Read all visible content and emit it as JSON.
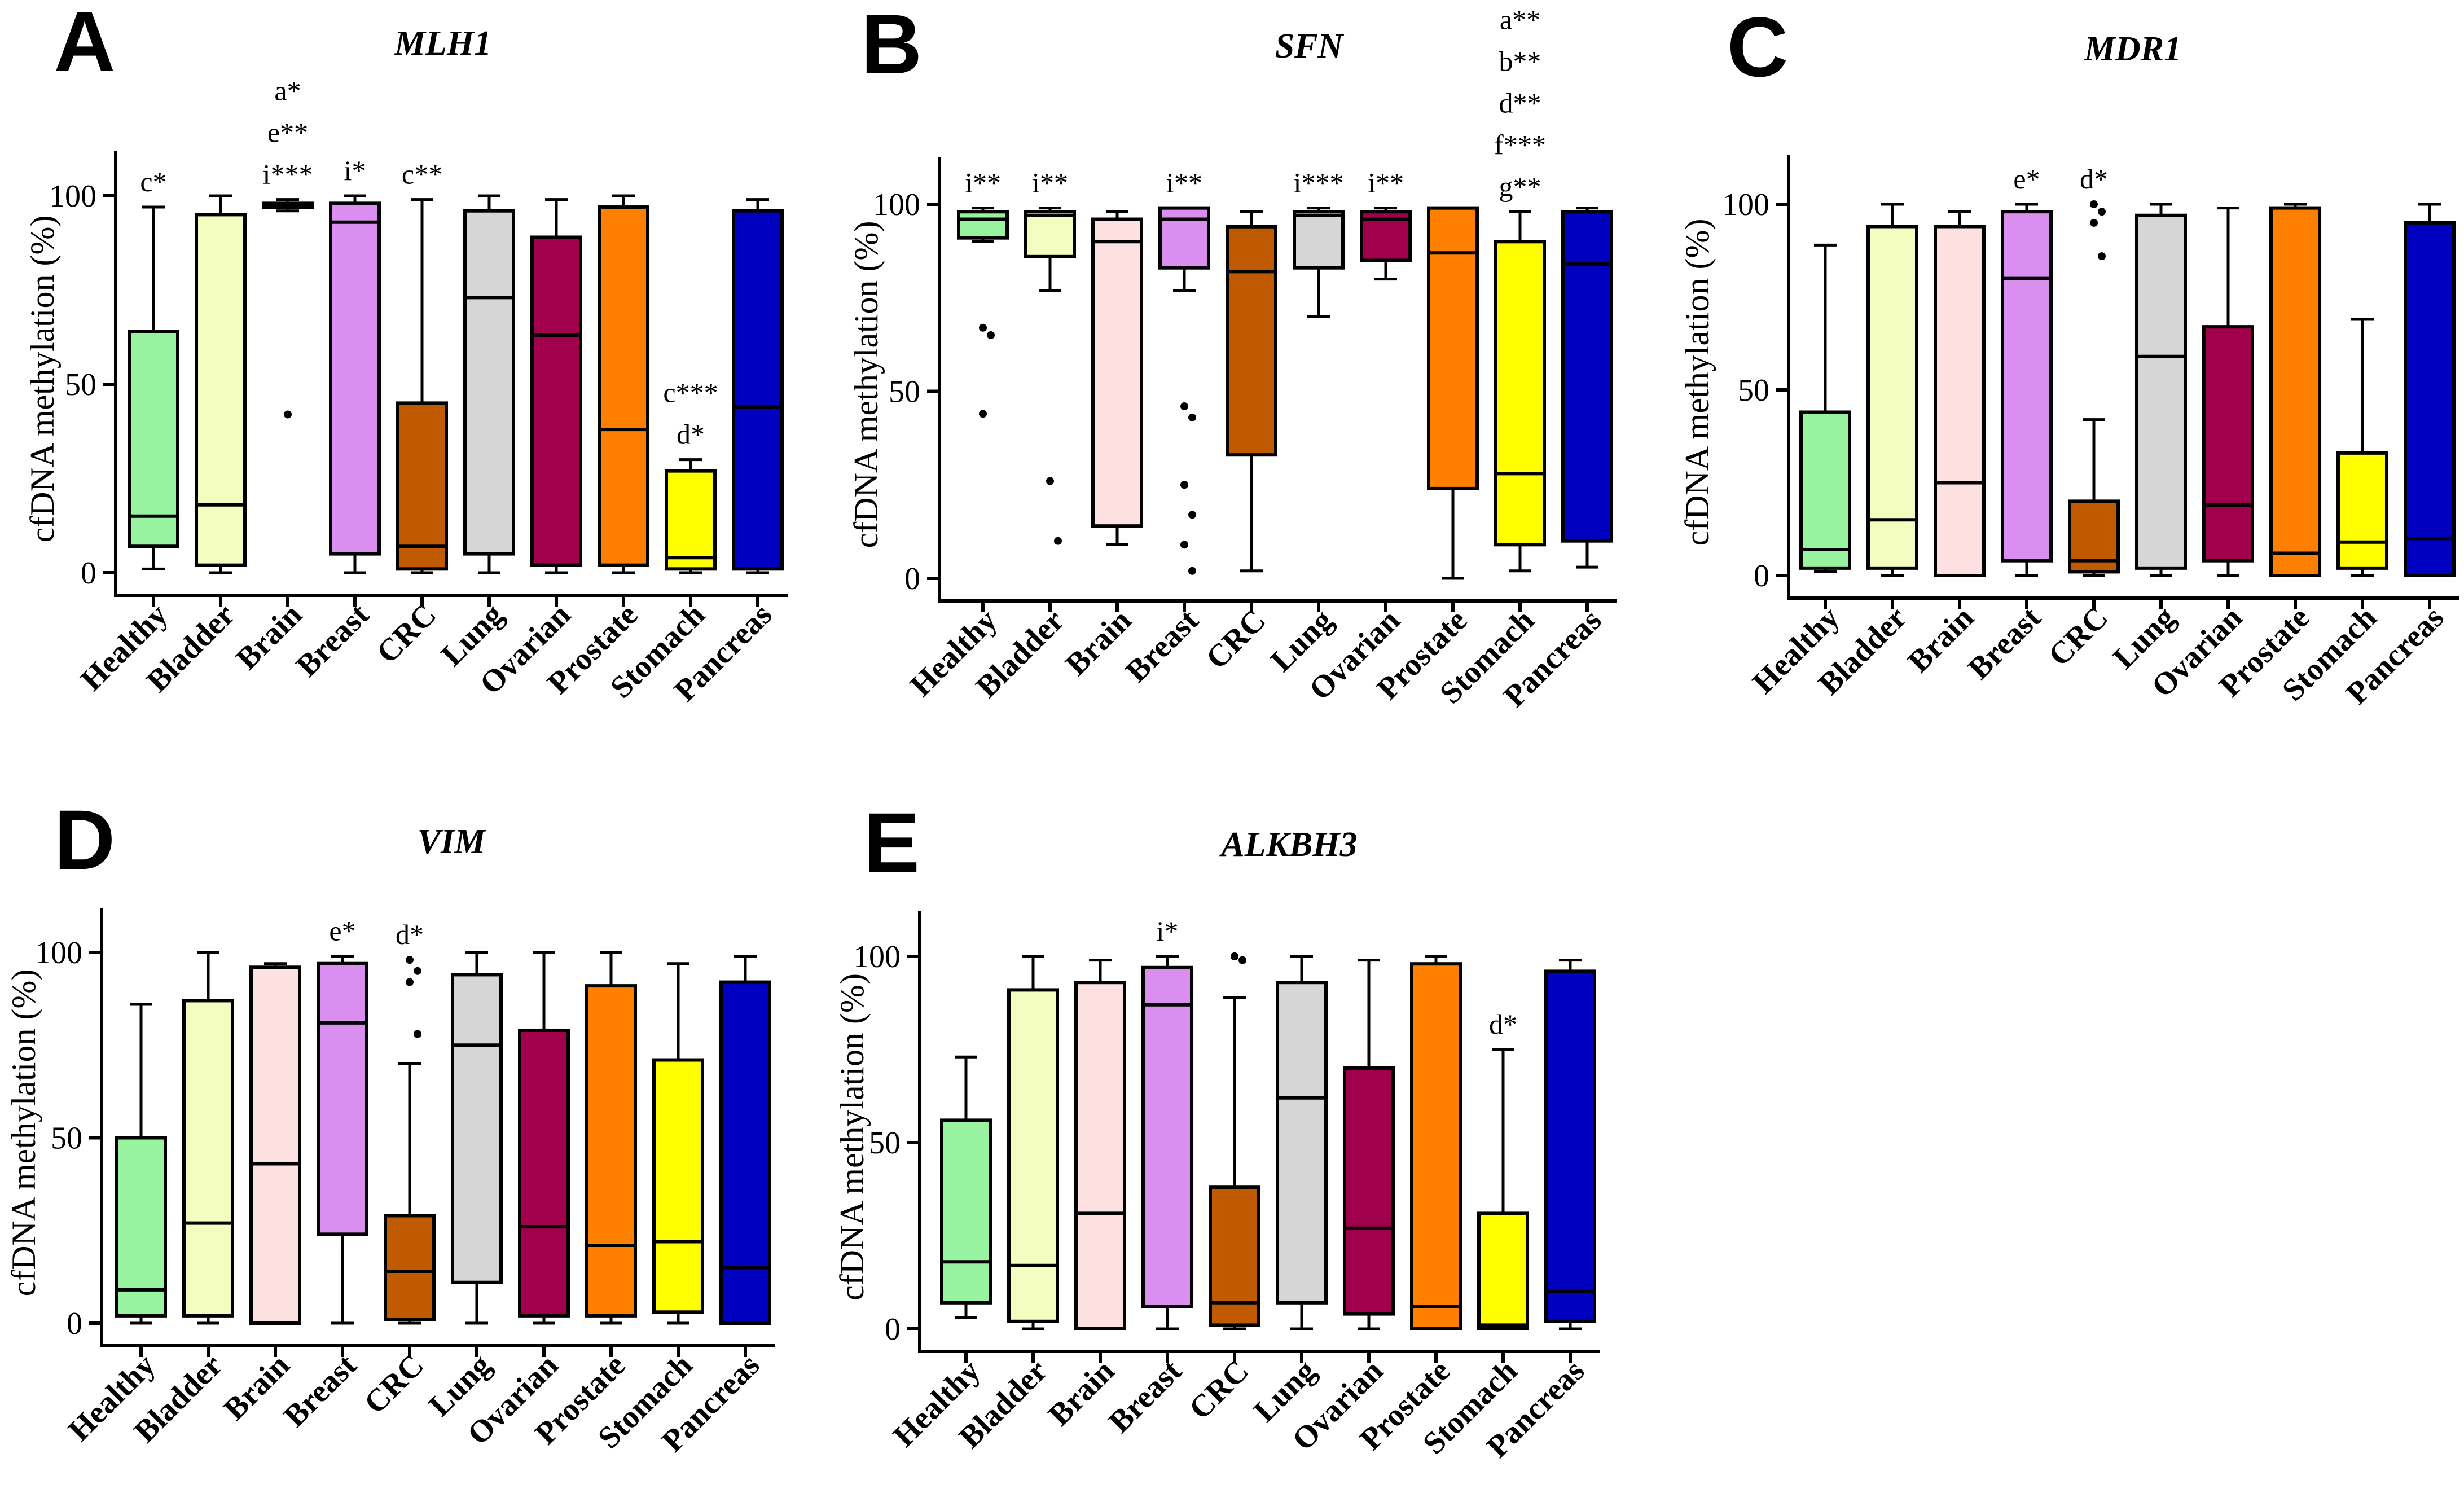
{
  "figure": {
    "categories": [
      "Healthy",
      "Bladder",
      "Brain",
      "Breast",
      "CRC",
      "Lung",
      "Ovarian",
      "Prostate",
      "Stomach",
      "Pancreas"
    ],
    "colors": {
      "Healthy": "#98f3a0",
      "Bladder": "#f4fdc0",
      "Brain": "#fde0e0",
      "Breast": "#da8ff0",
      "CRC": "#c05a00",
      "Lung": "#d6d6d6",
      "Ovarian": "#a0004c",
      "Prostate": "#ff8000",
      "Stomach": "#ffff00",
      "Pancreas": "#0000c0"
    }
  },
  "chart_data": [
    {
      "panel": "A",
      "title": "MLH1",
      "type": "boxplot",
      "ylabel": "cfDNA methylation (%)",
      "ylim": [
        0,
        100
      ],
      "yticks": [
        0,
        50,
        100
      ],
      "boxes": [
        {
          "category": "Healthy",
          "min": 1,
          "q1": 7,
          "median": 15,
          "q3": 64,
          "max": 97,
          "outliers": []
        },
        {
          "category": "Bladder",
          "min": 0,
          "q1": 2,
          "median": 18,
          "q3": 95,
          "max": 100,
          "outliers": []
        },
        {
          "category": "Brain",
          "min": 96,
          "q1": 97,
          "median": 97.5,
          "q3": 98,
          "max": 99,
          "outliers": [
            42
          ]
        },
        {
          "category": "Breast",
          "min": 0,
          "q1": 5,
          "median": 93,
          "q3": 98,
          "max": 100,
          "outliers": []
        },
        {
          "category": "CRC",
          "min": 0,
          "q1": 1,
          "median": 7,
          "q3": 45,
          "max": 99,
          "outliers": []
        },
        {
          "category": "Lung",
          "min": 0,
          "q1": 5,
          "median": 73,
          "q3": 96,
          "max": 100,
          "outliers": []
        },
        {
          "category": "Ovarian",
          "min": 0,
          "q1": 2,
          "median": 63,
          "q3": 89,
          "max": 99,
          "outliers": []
        },
        {
          "category": "Prostate",
          "min": 0,
          "q1": 2,
          "median": 38,
          "q3": 97,
          "max": 100,
          "outliers": []
        },
        {
          "category": "Stomach",
          "min": 0,
          "q1": 1,
          "median": 4,
          "q3": 27,
          "max": 30,
          "outliers": []
        },
        {
          "category": "Pancreas",
          "min": 0,
          "q1": 1,
          "median": 44,
          "q3": 96,
          "max": 99,
          "outliers": []
        }
      ],
      "annotations": [
        {
          "category": "Healthy",
          "lines": [
            "c*"
          ]
        },
        {
          "category": "Brain",
          "lines": [
            "a*",
            "e**",
            "i***"
          ]
        },
        {
          "category": "Breast",
          "lines": [
            "i*"
          ]
        },
        {
          "category": "CRC",
          "lines": [
            "c**"
          ]
        },
        {
          "category": "Stomach",
          "lines": [
            "c***",
            "d*"
          ]
        }
      ]
    },
    {
      "panel": "B",
      "title": "SFN",
      "type": "boxplot",
      "ylabel": "cfDNA methylation (%)",
      "ylim": [
        0,
        100
      ],
      "yticks": [
        0,
        50,
        100
      ],
      "boxes": [
        {
          "category": "Healthy",
          "min": 90,
          "q1": 91,
          "median": 96,
          "q3": 98,
          "max": 99,
          "outliers": [
            67,
            65,
            44
          ]
        },
        {
          "category": "Bladder",
          "min": 77,
          "q1": 86,
          "median": 97,
          "q3": 98,
          "max": 99,
          "outliers": [
            26,
            10
          ]
        },
        {
          "category": "Brain",
          "min": 9,
          "q1": 14,
          "median": 90,
          "q3": 96,
          "max": 98,
          "outliers": []
        },
        {
          "category": "Breast",
          "min": 77,
          "q1": 83,
          "median": 96,
          "q3": 99,
          "max": 99,
          "outliers": [
            46,
            43,
            25,
            17,
            9,
            2
          ]
        },
        {
          "category": "CRC",
          "min": 2,
          "q1": 33,
          "median": 82,
          "q3": 94,
          "max": 98,
          "outliers": []
        },
        {
          "category": "Lung",
          "min": 70,
          "q1": 83,
          "median": 97,
          "q3": 98,
          "max": 99,
          "outliers": []
        },
        {
          "category": "Ovarian",
          "min": 80,
          "q1": 85,
          "median": 96,
          "q3": 98,
          "max": 99,
          "outliers": []
        },
        {
          "category": "Prostate",
          "min": 0,
          "q1": 24,
          "median": 87,
          "q3": 99,
          "max": 99,
          "outliers": []
        },
        {
          "category": "Stomach",
          "min": 2,
          "q1": 9,
          "median": 28,
          "q3": 90,
          "max": 98,
          "outliers": []
        },
        {
          "category": "Pancreas",
          "min": 3,
          "q1": 10,
          "median": 84,
          "q3": 98,
          "max": 99,
          "outliers": []
        }
      ],
      "annotations": [
        {
          "category": "Healthy",
          "lines": [
            "i**"
          ]
        },
        {
          "category": "Bladder",
          "lines": [
            "i**"
          ]
        },
        {
          "category": "Breast",
          "lines": [
            "i**"
          ]
        },
        {
          "category": "Lung",
          "lines": [
            "i***"
          ]
        },
        {
          "category": "Ovarian",
          "lines": [
            "i**"
          ]
        },
        {
          "category": "Stomach",
          "lines": [
            "a**",
            "b**",
            "d**",
            "f***",
            "g**"
          ]
        }
      ]
    },
    {
      "panel": "C",
      "title": "MDR1",
      "type": "boxplot",
      "ylabel": "cfDNA methylation (%)",
      "ylim": [
        0,
        100
      ],
      "yticks": [
        0,
        50,
        100
      ],
      "boxes": [
        {
          "category": "Healthy",
          "min": 1,
          "q1": 2,
          "median": 7,
          "q3": 44,
          "max": 89,
          "outliers": []
        },
        {
          "category": "Bladder",
          "min": 0,
          "q1": 2,
          "median": 15,
          "q3": 94,
          "max": 100,
          "outliers": []
        },
        {
          "category": "Brain",
          "min": 0,
          "q1": 0,
          "median": 25,
          "q3": 94,
          "max": 98,
          "outliers": []
        },
        {
          "category": "Breast",
          "min": 0,
          "q1": 4,
          "median": 80,
          "q3": 98,
          "max": 100,
          "outliers": []
        },
        {
          "category": "CRC",
          "min": 0,
          "q1": 1,
          "median": 4,
          "q3": 20,
          "max": 42,
          "outliers": [
            100,
            98,
            95,
            86
          ]
        },
        {
          "category": "Lung",
          "min": 0,
          "q1": 2,
          "median": 59,
          "q3": 97,
          "max": 100,
          "outliers": []
        },
        {
          "category": "Ovarian",
          "min": 0,
          "q1": 4,
          "median": 19,
          "q3": 67,
          "max": 99,
          "outliers": []
        },
        {
          "category": "Prostate",
          "min": 0,
          "q1": 0,
          "median": 6,
          "q3": 99,
          "max": 100,
          "outliers": []
        },
        {
          "category": "Stomach",
          "min": 0,
          "q1": 2,
          "median": 9,
          "q3": 33,
          "max": 69,
          "outliers": []
        },
        {
          "category": "Pancreas",
          "min": 0,
          "q1": 0,
          "median": 10,
          "q3": 95,
          "max": 100,
          "outliers": []
        }
      ],
      "annotations": [
        {
          "category": "Breast",
          "lines": [
            "e*"
          ]
        },
        {
          "category": "CRC",
          "lines": [
            "d*"
          ]
        }
      ]
    },
    {
      "panel": "D",
      "title": "VIM",
      "type": "boxplot",
      "ylabel": "cfDNA methylation (%)",
      "ylim": [
        0,
        100
      ],
      "yticks": [
        0,
        50,
        100
      ],
      "boxes": [
        {
          "category": "Healthy",
          "min": 0,
          "q1": 2,
          "median": 9,
          "q3": 50,
          "max": 86,
          "outliers": []
        },
        {
          "category": "Bladder",
          "min": 0,
          "q1": 2,
          "median": 27,
          "q3": 87,
          "max": 100,
          "outliers": []
        },
        {
          "category": "Brain",
          "min": 0,
          "q1": 0,
          "median": 43,
          "q3": 96,
          "max": 97,
          "outliers": []
        },
        {
          "category": "Breast",
          "min": 0,
          "q1": 24,
          "median": 81,
          "q3": 97,
          "max": 99,
          "outliers": []
        },
        {
          "category": "CRC",
          "min": 0,
          "q1": 1,
          "median": 14,
          "q3": 29,
          "max": 70,
          "outliers": [
            98,
            95,
            92,
            78
          ]
        },
        {
          "category": "Lung",
          "min": 0,
          "q1": 11,
          "median": 75,
          "q3": 94,
          "max": 100,
          "outliers": []
        },
        {
          "category": "Ovarian",
          "min": 0,
          "q1": 2,
          "median": 26,
          "q3": 79,
          "max": 100,
          "outliers": []
        },
        {
          "category": "Prostate",
          "min": 0,
          "q1": 2,
          "median": 21,
          "q3": 91,
          "max": 100,
          "outliers": []
        },
        {
          "category": "Stomach",
          "min": 0,
          "q1": 3,
          "median": 22,
          "q3": 71,
          "max": 97,
          "outliers": []
        },
        {
          "category": "Pancreas",
          "min": 0,
          "q1": 0,
          "median": 15,
          "q3": 92,
          "max": 99,
          "outliers": []
        }
      ],
      "annotations": [
        {
          "category": "Breast",
          "lines": [
            "e*"
          ]
        },
        {
          "category": "CRC",
          "lines": [
            "d*"
          ]
        }
      ]
    },
    {
      "panel": "E",
      "title": "ALKBH3",
      "type": "boxplot",
      "ylabel": "cfDNA methylation (%)",
      "ylim": [
        0,
        100
      ],
      "yticks": [
        0,
        50,
        100
      ],
      "boxes": [
        {
          "category": "Healthy",
          "min": 3,
          "q1": 7,
          "median": 18,
          "q3": 56,
          "max": 73,
          "outliers": []
        },
        {
          "category": "Bladder",
          "min": 0,
          "q1": 2,
          "median": 17,
          "q3": 91,
          "max": 100,
          "outliers": []
        },
        {
          "category": "Brain",
          "min": 0,
          "q1": 0,
          "median": 31,
          "q3": 93,
          "max": 99,
          "outliers": []
        },
        {
          "category": "Breast",
          "min": 0,
          "q1": 6,
          "median": 87,
          "q3": 97,
          "max": 100,
          "outliers": []
        },
        {
          "category": "CRC",
          "min": 0,
          "q1": 1,
          "median": 7,
          "q3": 38,
          "max": 89,
          "outliers": [
            100,
            99,
            100
          ]
        },
        {
          "category": "Lung",
          "min": 0,
          "q1": 7,
          "median": 62,
          "q3": 93,
          "max": 100,
          "outliers": []
        },
        {
          "category": "Ovarian",
          "min": 0,
          "q1": 4,
          "median": 27,
          "q3": 70,
          "max": 99,
          "outliers": []
        },
        {
          "category": "Prostate",
          "min": 0,
          "q1": 0,
          "median": 6,
          "q3": 98,
          "max": 100,
          "outliers": []
        },
        {
          "category": "Stomach",
          "min": 0,
          "q1": 0,
          "median": 1,
          "q3": 31,
          "max": 75,
          "outliers": []
        },
        {
          "category": "Pancreas",
          "min": 0,
          "q1": 2,
          "median": 10,
          "q3": 96,
          "max": 99,
          "outliers": []
        }
      ],
      "annotations": [
        {
          "category": "Breast",
          "lines": [
            "i*"
          ]
        },
        {
          "category": "Stomach",
          "lines": [
            "d*"
          ]
        }
      ]
    }
  ]
}
